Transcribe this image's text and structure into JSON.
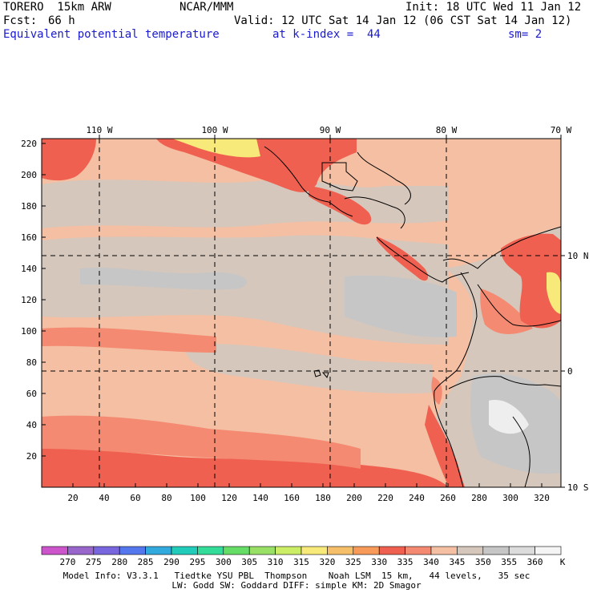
{
  "header": {
    "model": "TORERO  15km ARW",
    "center": "NCAR/MMM",
    "init": "Init: 18 UTC Wed 11 Jan 12",
    "fcst_label": "Fcst:",
    "fcst_value": "66 h",
    "valid": "Valid: 12 UTC Sat 14 Jan 12 (06 CST Sat 14 Jan 12)",
    "field": "Equivalent potential temperature",
    "level": "at k-index =  44",
    "smoothing": "sm= 2"
  },
  "map": {
    "top_lon_labels": [
      "110 W",
      "100 W",
      "90 W",
      "80 W",
      "70 W"
    ],
    "right_lat_labels": [
      "10 N",
      "0",
      "10 S"
    ],
    "left_ticks": [
      "220",
      "200",
      "180",
      "160",
      "140",
      "120",
      "100",
      "80",
      "60",
      "40",
      "20"
    ],
    "bottom_ticks": [
      "20",
      "40",
      "60",
      "80",
      "100",
      "120",
      "140",
      "160",
      "180",
      "200",
      "220",
      "240",
      "260",
      "280",
      "300",
      "320"
    ]
  },
  "colorbar": {
    "labels": [
      "270",
      "275",
      "280",
      "285",
      "290",
      "295",
      "300",
      "305",
      "310",
      "315",
      "320",
      "325",
      "330",
      "335",
      "340",
      "345",
      "350",
      "355",
      "360"
    ],
    "unit": "K",
    "colors": [
      "#cc55cc",
      "#9966cc",
      "#7766dd",
      "#5577ee",
      "#33aadd",
      "#22ccbb",
      "#33dd99",
      "#66dd66",
      "#99e066",
      "#ccee66",
      "#f7ea7a",
      "#f5c069",
      "#f79a5a",
      "#f06050",
      "#f48a72",
      "#f4bfa3",
      "#d6c7bc",
      "#c6c6c6",
      "#dcdcdc",
      "#f5f5f5"
    ]
  },
  "footer": {
    "line1": "Model Info: V3.3.1   Tiedtke YSU PBL  Thompson    Noah LSM  15 km,   44 levels,   35 sec",
    "line2": "LW: Godd SW: Goddard DIFF: simple KM: 2D Smagor"
  }
}
